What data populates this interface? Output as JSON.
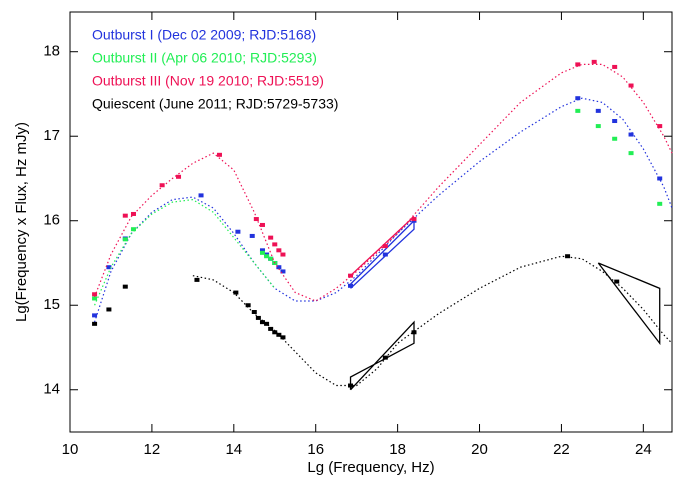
{
  "chart_data": {
    "type": "scatter",
    "x_label": "Lg (Frequency, Hz)",
    "y_label": "Lg(Frequency x Flux, Hz mJy)",
    "xlim": [
      10,
      24.7
    ],
    "ylim": [
      13.5,
      18.47
    ],
    "xticks": [
      10,
      12,
      14,
      16,
      18,
      20,
      22,
      24
    ],
    "yticks": [
      14,
      15,
      16,
      17,
      18
    ],
    "series": [
      {
        "name": "Outburst I (Dec 02 2009; RJD:5168)",
        "color": "#2233dd",
        "x": [
          10.6,
          10.95,
          11.35,
          13.2,
          14.1,
          14.45,
          14.7,
          14.8,
          14.9,
          15.0,
          15.1,
          15.2,
          16.85,
          17.7,
          18.4,
          22.4,
          22.9,
          23.3,
          23.7,
          24.4
        ],
        "values": [
          14.88,
          15.45,
          15.79,
          16.3,
          15.87,
          15.82,
          15.65,
          15.6,
          15.55,
          15.5,
          15.45,
          15.4,
          15.23,
          15.6,
          16.0,
          17.45,
          17.3,
          17.18,
          17.02,
          16.5
        ],
        "model_x": [
          10.6,
          11,
          11.5,
          12,
          12.5,
          13,
          13.5,
          14,
          14.5,
          15,
          15.5,
          16,
          16.5,
          17,
          18,
          19,
          20,
          21,
          22,
          22.5,
          23,
          23.5,
          24,
          24.5,
          24.7
        ],
        "model_y": [
          14.8,
          15.4,
          15.85,
          16.1,
          16.25,
          16.28,
          16.15,
          15.85,
          15.5,
          15.2,
          15.05,
          15.05,
          15.15,
          15.35,
          15.85,
          16.3,
          16.7,
          17.05,
          17.35,
          17.45,
          17.4,
          17.2,
          16.85,
          16.4,
          16.15
        ],
        "shapes": [
          {
            "x": [
              16.85,
              18.4,
              18.4,
              16.85
            ],
            "y": [
              15.2,
              15.9,
              16.0,
              15.25
            ]
          }
        ]
      },
      {
        "name": "Outburst II (Apr 06 2010; RJD:5293)",
        "color": "#22ee55",
        "x": [
          10.6,
          11.35,
          11.55,
          14.7,
          14.8,
          14.9,
          15.0,
          22.4,
          22.9,
          23.3,
          23.7,
          24.4
        ],
        "values": [
          15.08,
          15.78,
          15.9,
          15.62,
          15.58,
          15.55,
          15.5,
          17.3,
          17.12,
          16.97,
          16.8,
          16.2
        ],
        "model_x": [
          10.6,
          11,
          11.5,
          12,
          12.5,
          13,
          13.5,
          14,
          14.5,
          15
        ],
        "model_y": [
          15.0,
          15.45,
          15.85,
          16.08,
          16.22,
          16.25,
          16.1,
          15.8,
          15.5,
          15.2
        ],
        "shapes": []
      },
      {
        "name": "Outburst III (Nov 19 2010; RJD:5519)",
        "color": "#ee1155",
        "x": [
          10.6,
          11.35,
          11.55,
          12.25,
          12.65,
          13.65,
          14.55,
          14.7,
          14.9,
          15.0,
          15.1,
          15.2,
          16.85,
          17.7,
          18.4,
          22.4,
          22.8,
          23.3,
          23.7,
          24.4
        ],
        "values": [
          15.13,
          16.06,
          16.08,
          16.42,
          16.52,
          16.78,
          16.02,
          15.95,
          15.8,
          15.72,
          15.65,
          15.6,
          15.35,
          15.7,
          16.02,
          17.85,
          17.88,
          17.82,
          17.6,
          17.12
        ],
        "model_x": [
          10.6,
          11,
          11.5,
          12,
          12.5,
          13,
          13.5,
          14,
          14.5,
          15,
          15.5,
          16,
          16.5,
          17,
          18,
          19,
          20,
          21,
          22,
          22.5,
          23,
          23.5,
          24,
          24.5,
          24.7
        ],
        "model_y": [
          15.1,
          15.6,
          16.05,
          16.3,
          16.5,
          16.68,
          16.8,
          16.6,
          16.1,
          15.5,
          15.15,
          15.05,
          15.2,
          15.4,
          15.85,
          16.4,
          16.9,
          17.4,
          17.75,
          17.85,
          17.85,
          17.7,
          17.4,
          17.0,
          16.8
        ],
        "shapes": [
          {
            "x": [
              16.85,
              18.4
            ],
            "y": [
              15.35,
              16.05
            ]
          }
        ]
      },
      {
        "name": "Quiescent  (June 2011; RJD:5729-5733)",
        "color": "#000000",
        "x": [
          10.6,
          10.95,
          11.35,
          13.1,
          14.05,
          14.35,
          14.5,
          14.6,
          14.7,
          14.8,
          14.9,
          15.0,
          15.1,
          15.2,
          16.85,
          17.7,
          18.4,
          22.15,
          23.35
        ],
        "values": [
          14.78,
          14.95,
          15.22,
          15.3,
          15.15,
          15.0,
          14.92,
          14.85,
          14.8,
          14.78,
          14.72,
          14.68,
          14.65,
          14.62,
          14.05,
          14.38,
          14.68,
          15.58,
          15.28
        ],
        "model_x": [
          13,
          13.5,
          14,
          14.5,
          15,
          15.5,
          16,
          16.5,
          17,
          17.5,
          18,
          19,
          20,
          21,
          22,
          22.5,
          23,
          23.5,
          24,
          24.5,
          24.7
        ],
        "model_y": [
          15.35,
          15.3,
          15.15,
          14.9,
          14.7,
          14.45,
          14.2,
          14.05,
          14.05,
          14.25,
          14.55,
          14.9,
          15.2,
          15.45,
          15.58,
          15.55,
          15.4,
          15.2,
          14.95,
          14.65,
          14.55
        ],
        "shapes": [
          {
            "x": [
              16.85,
              18.4,
              18.4,
              16.85,
              16.85
            ],
            "y": [
              14.0,
              14.8,
              14.55,
              14.15,
              14.0
            ]
          },
          {
            "x": [
              22.9,
              24.4,
              24.4,
              22.9
            ],
            "y": [
              15.5,
              15.2,
              14.55,
              15.5
            ]
          }
        ]
      }
    ]
  }
}
